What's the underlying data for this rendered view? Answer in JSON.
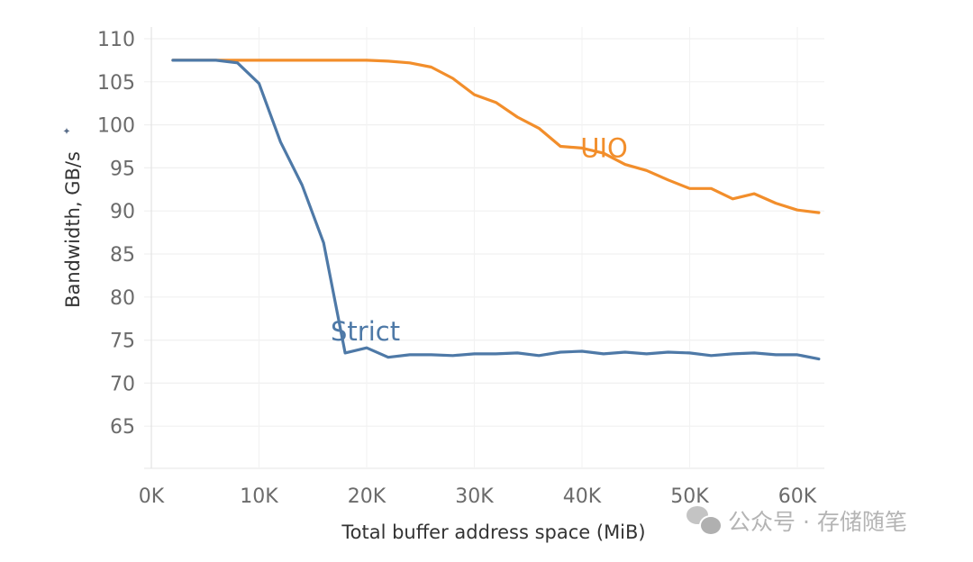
{
  "chart_data": {
    "type": "line",
    "title": "",
    "xlabel": "Total buffer address space (MiB)",
    "ylabel": "Bandwidth, GB/s",
    "xlim": [
      -2,
      64
    ],
    "ylim": [
      60,
      111
    ],
    "x_ticks": [
      0,
      10,
      20,
      30,
      40,
      50,
      60
    ],
    "x_tick_labels": [
      "0K",
      "10K",
      "20K",
      "30K",
      "40K",
      "50K",
      "60K"
    ],
    "y_ticks": [
      65,
      70,
      75,
      80,
      85,
      90,
      95,
      100,
      105,
      110
    ],
    "y_tick_labels": [
      "65",
      "70",
      "75",
      "80",
      "85",
      "90",
      "95",
      "100",
      "105",
      "110"
    ],
    "grid": true,
    "legend": "inline labels",
    "x": [
      2,
      4,
      6,
      8,
      10,
      12,
      14,
      16,
      18,
      20,
      22,
      24,
      26,
      28,
      30,
      32,
      34,
      36,
      38,
      40,
      42,
      44,
      46,
      48,
      50,
      52,
      54,
      56,
      58,
      60,
      62
    ],
    "series": [
      {
        "name": "UIO",
        "color": "#f28e2b",
        "label_pos": [
          43.2,
          97.3
        ],
        "values": [
          107.5,
          107.5,
          107.5,
          107.5,
          107.5,
          107.5,
          107.5,
          107.5,
          107.5,
          107.5,
          107.4,
          107.2,
          106.7,
          105.4,
          103.5,
          102.6,
          100.9,
          99.6,
          97.5,
          97.3,
          96.7,
          95.4,
          94.7,
          93.6,
          92.6,
          92.6,
          91.4,
          92.0,
          90.9,
          90.1,
          89.8
        ]
      },
      {
        "name": "Strict",
        "color": "#4e79a7",
        "label_pos": [
          20.0,
          76.0
        ],
        "values": [
          107.5,
          107.5,
          107.5,
          107.2,
          104.8,
          98.0,
          93.0,
          86.3,
          73.5,
          74.1,
          73.0,
          73.3,
          73.3,
          73.2,
          73.4,
          73.4,
          73.5,
          73.2,
          73.6,
          73.7,
          73.4,
          73.6,
          73.4,
          73.6,
          73.5,
          73.2,
          73.4,
          73.5,
          73.3,
          73.3,
          72.8
        ]
      }
    ]
  },
  "watermark": {
    "icon": "wechat-icon",
    "text": "公众号 · 存储随笔"
  }
}
